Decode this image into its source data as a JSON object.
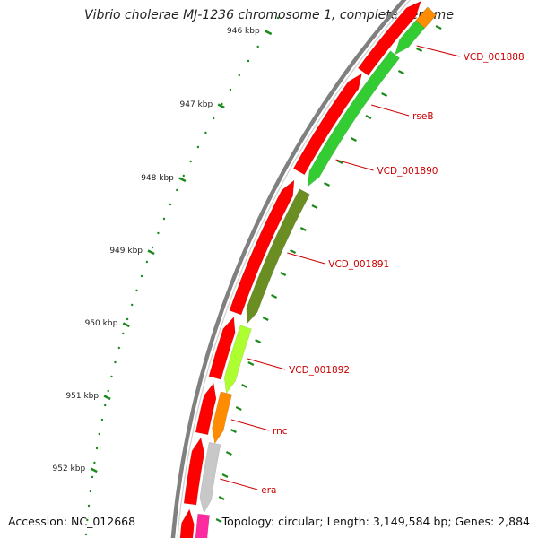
{
  "title": "Vibrio cholerae MJ-1236 chromosome 1, complete genome",
  "footer": {
    "accession": "Accession: NC_012668",
    "summary": "Topology: circular; Length: 3,149,584 bp; Genes: 2,884"
  },
  "ruler": {
    "labels": [
      "946 kbp",
      "947 kbp",
      "948 kbp",
      "949 kbp",
      "950 kbp",
      "951 kbp",
      "952 kbp"
    ]
  },
  "genes": [
    {
      "name": "VCD_001888",
      "color": "#33cc33"
    },
    {
      "name": "rseB",
      "color": "#33cc33"
    },
    {
      "name": "VCD_001890",
      "color": "#33cc33"
    },
    {
      "name": "VCD_001891",
      "color": "#6b8e23"
    },
    {
      "name": "VCD_001892",
      "color": "#adff2f"
    },
    {
      "name": "rnc",
      "color": "#ff8c00"
    },
    {
      "name": "era",
      "color": "#c8c8c8"
    }
  ],
  "colors": {
    "backbone": "#808080",
    "cds_strand": "#ff0000",
    "tick": "#1a8a1a",
    "label_text": "#cc0000",
    "pink_feature": "#ff2aa0",
    "top_orange": "#ff8c00"
  }
}
